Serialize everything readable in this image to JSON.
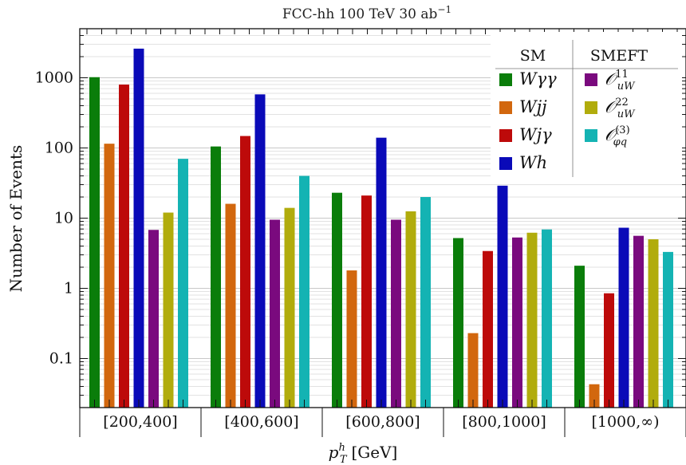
{
  "chart_data": {
    "type": "bar",
    "title": "FCC-hh 100 TeV 30 ab",
    "title_superscript": "−1",
    "xlabel": "p",
    "xlabel_sub": "T",
    "xlabel_sup": "h",
    "xlabel_unit": "[GeV]",
    "ylabel": "Number of Events",
    "yscale": "log",
    "ylim": [
      0.02,
      5000
    ],
    "yticks": [
      {
        "value": 0.1,
        "label": "0.1"
      },
      {
        "value": 1,
        "label": "1"
      },
      {
        "value": 10,
        "label": "10"
      },
      {
        "value": 100,
        "label": "100"
      },
      {
        "value": 1000,
        "label": "1000"
      }
    ],
    "grid": true,
    "categories": [
      "[200,400]",
      "[400,600]",
      "[600,800]",
      "[800,1000]",
      "[1000,∞)"
    ],
    "series": [
      {
        "name": "Wγγ",
        "group": "SM",
        "color": "#0a7d0a",
        "values": [
          1020,
          105,
          23,
          5.2,
          2.1
        ]
      },
      {
        "name": "Wjj",
        "group": "SM",
        "color": "#d2670e",
        "values": [
          115,
          16,
          1.8,
          0.23,
          0.043
        ]
      },
      {
        "name": "Wjγ",
        "group": "SM",
        "color": "#bd0a0a",
        "values": [
          800,
          148,
          21,
          3.4,
          0.85
        ]
      },
      {
        "name": "Wh",
        "group": "SM",
        "color": "#0a0ab8",
        "values": [
          2600,
          580,
          140,
          29,
          7.3
        ]
      },
      {
        "name": "O_uW^11",
        "group": "SMEFT",
        "color": "#7a0a7e",
        "values": [
          6.8,
          9.5,
          9.5,
          5.3,
          5.6
        ]
      },
      {
        "name": "O_uW^22",
        "group": "SMEFT",
        "color": "#b1ac0c",
        "values": [
          12,
          14,
          12.5,
          6.2,
          5.0
        ]
      },
      {
        "name": "O_φq^(3)",
        "group": "SMEFT",
        "color": "#14b3b3",
        "values": [
          70,
          40,
          20,
          6.9,
          3.3
        ]
      }
    ],
    "legend": {
      "placement": "top-right",
      "headers": [
        "SM",
        "SMEFT"
      ]
    }
  }
}
